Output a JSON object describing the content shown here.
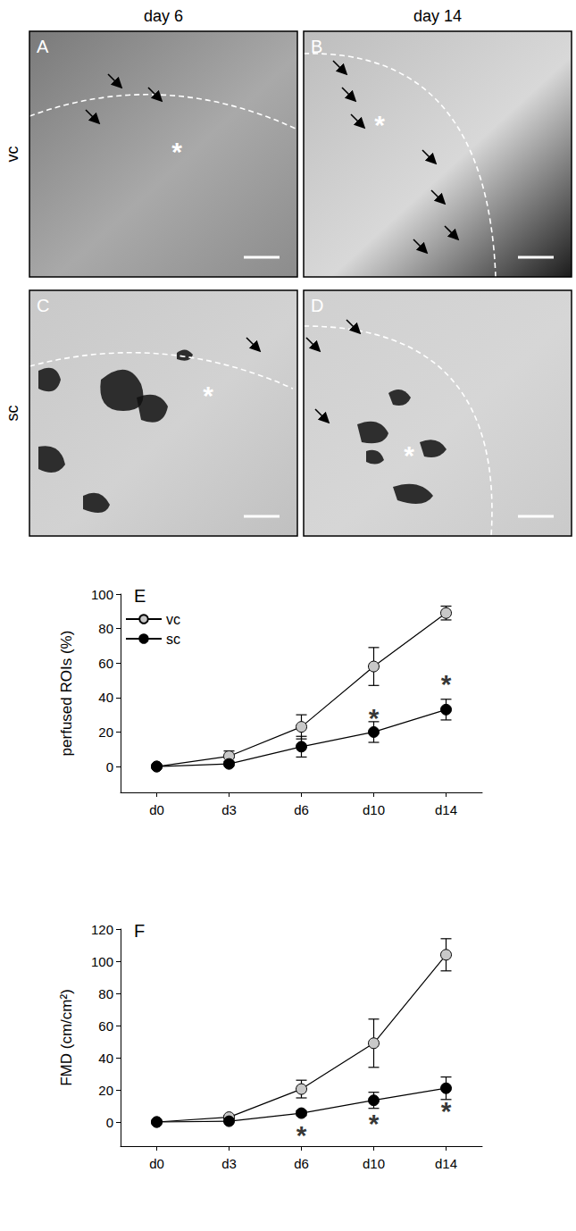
{
  "figure": {
    "columns": [
      "day 6",
      "day 14"
    ],
    "rows": [
      "vc",
      "sc"
    ],
    "panels": [
      {
        "label": "A",
        "marker": "*"
      },
      {
        "label": "B",
        "marker": "*"
      },
      {
        "label": "C",
        "marker": "*"
      },
      {
        "label": "D",
        "marker": "*"
      }
    ]
  },
  "chart_data": [
    {
      "type": "line",
      "title": "E",
      "y_label": "perfused ROIs (%)",
      "categories": [
        "d0",
        "d3",
        "d6",
        "d10",
        "d14"
      ],
      "series": [
        {
          "name": "vc",
          "color": "#c8c8c8",
          "marker": "circle",
          "values": [
            0,
            6,
            23,
            58,
            89
          ],
          "errors": [
            0,
            3,
            7,
            11,
            4
          ]
        },
        {
          "name": "sc",
          "color": "#000000",
          "marker": "circle",
          "values": [
            0,
            1.5,
            11.5,
            20,
            33
          ],
          "errors": [
            0,
            1,
            6,
            6,
            6
          ]
        }
      ],
      "annotations": [
        {
          "text": "*",
          "x": "d10",
          "y": 28
        },
        {
          "text": "*",
          "x": "d14",
          "y": 48
        }
      ],
      "ylim": [
        -15,
        100
      ],
      "yticks": [
        0,
        20,
        40,
        60,
        80,
        100
      ],
      "grid": false,
      "legend": "upper left"
    },
    {
      "type": "line",
      "title": "F",
      "y_label": "FMD (cm/cm²)",
      "categories": [
        "d0",
        "d3",
        "d6",
        "d10",
        "d14"
      ],
      "series": [
        {
          "name": "vc",
          "color": "#c8c8c8",
          "marker": "circle",
          "values": [
            0,
            3,
            20.5,
            49,
            104
          ],
          "errors": [
            0,
            1,
            5.5,
            15,
            10
          ]
        },
        {
          "name": "sc",
          "color": "#000000",
          "marker": "circle",
          "values": [
            0,
            0.5,
            5.5,
            13.5,
            21
          ],
          "errors": [
            0,
            0.5,
            1.5,
            5,
            7
          ]
        }
      ],
      "annotations": [
        {
          "text": "*",
          "x": "d6",
          "y": -8
        },
        {
          "text": "*",
          "x": "d10",
          "y": -1
        },
        {
          "text": "*",
          "x": "d14",
          "y": 7
        }
      ],
      "ylim": [
        -15,
        120
      ],
      "yticks": [
        0,
        20,
        40,
        60,
        80,
        100,
        120
      ],
      "grid": false
    }
  ]
}
